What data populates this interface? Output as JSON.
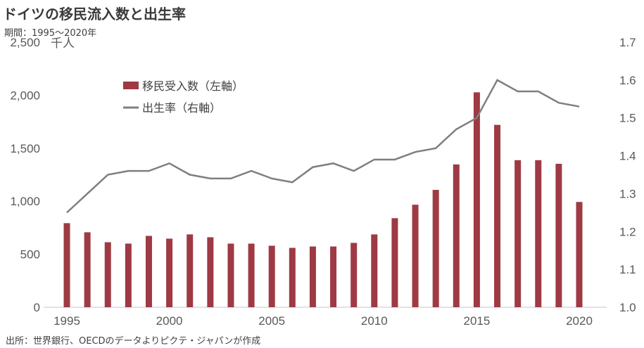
{
  "chart_data": {
    "type": "bar+line",
    "title": "ドイツの移民流入数と出生率",
    "subtitle": "期間：1995～2020年",
    "source": "出所：世界銀行、OECDのデータよりピクテ・ジャパンが作成",
    "left_axis": {
      "unit_label": "千人",
      "ylim": [
        0,
        2500
      ],
      "ticks": [
        "0",
        "500",
        "1,000",
        "1,500",
        "2,000",
        "2,500"
      ]
    },
    "right_axis": {
      "ylim": [
        1.0,
        1.7
      ],
      "ticks": [
        "1.0",
        "1.1",
        "1.2",
        "1.3",
        "1.4",
        "1.5",
        "1.6",
        "1.7"
      ]
    },
    "x": [
      1995,
      1996,
      1997,
      1998,
      1999,
      2000,
      2001,
      2002,
      2003,
      2004,
      2005,
      2006,
      2007,
      2008,
      2009,
      2010,
      2011,
      2012,
      2013,
      2014,
      2015,
      2016,
      2017,
      2018,
      2019,
      2020
    ],
    "x_tick_labels": [
      "1995",
      "2000",
      "2005",
      "2010",
      "2015",
      "2020"
    ],
    "series": [
      {
        "name": "移民受入数（左軸）",
        "type": "bar",
        "axis": "left",
        "color": "#9e3a44",
        "values": [
          793,
          707,
          613,
          600,
          673,
          647,
          687,
          660,
          600,
          600,
          580,
          560,
          573,
          573,
          607,
          687,
          840,
          967,
          1107,
          1347,
          2027,
          1720,
          1387,
          1387,
          1353,
          993
        ]
      },
      {
        "name": "出生率（右軸）",
        "type": "line",
        "axis": "right",
        "color": "#7f7f7f",
        "values": [
          1.25,
          1.3,
          1.35,
          1.36,
          1.36,
          1.38,
          1.35,
          1.34,
          1.34,
          1.36,
          1.34,
          1.33,
          1.37,
          1.38,
          1.36,
          1.39,
          1.39,
          1.41,
          1.42,
          1.47,
          1.5,
          1.6,
          1.57,
          1.57,
          1.54,
          1.53
        ]
      }
    ],
    "legend_position": "top-left",
    "grid": false
  }
}
